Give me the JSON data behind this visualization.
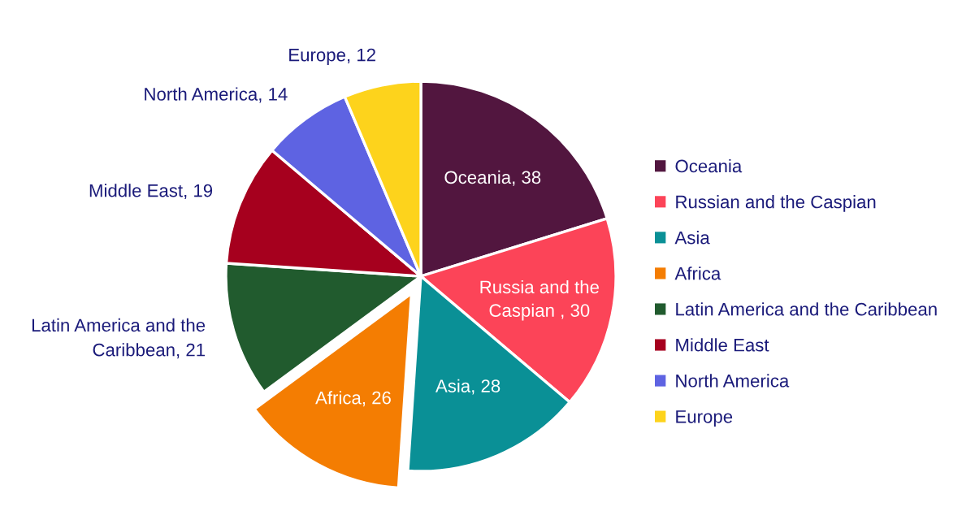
{
  "chart_data": {
    "type": "pie",
    "categories": [
      "Oceania",
      "Russian and the Caspian",
      "Asia",
      "Africa",
      "Latin America and the Caribbean",
      "Middle East",
      "North America",
      "Europe"
    ],
    "values": [
      38,
      30,
      28,
      26,
      21,
      19,
      14,
      12
    ],
    "colors": [
      "#52163f",
      "#fc4458",
      "#0a9096",
      "#f47d02",
      "#215b2e",
      "#a6001e",
      "#5e63e2",
      "#fdd31c"
    ],
    "value_labels": [
      "Oceania, 38",
      "Russia and the\nCaspian , 30",
      "Asia, 28",
      "Africa, 26",
      "Latin America and the\nCaribbean, 21",
      "Middle East, 19",
      "North America, 14",
      "Europe, 12"
    ],
    "legend": "right"
  }
}
